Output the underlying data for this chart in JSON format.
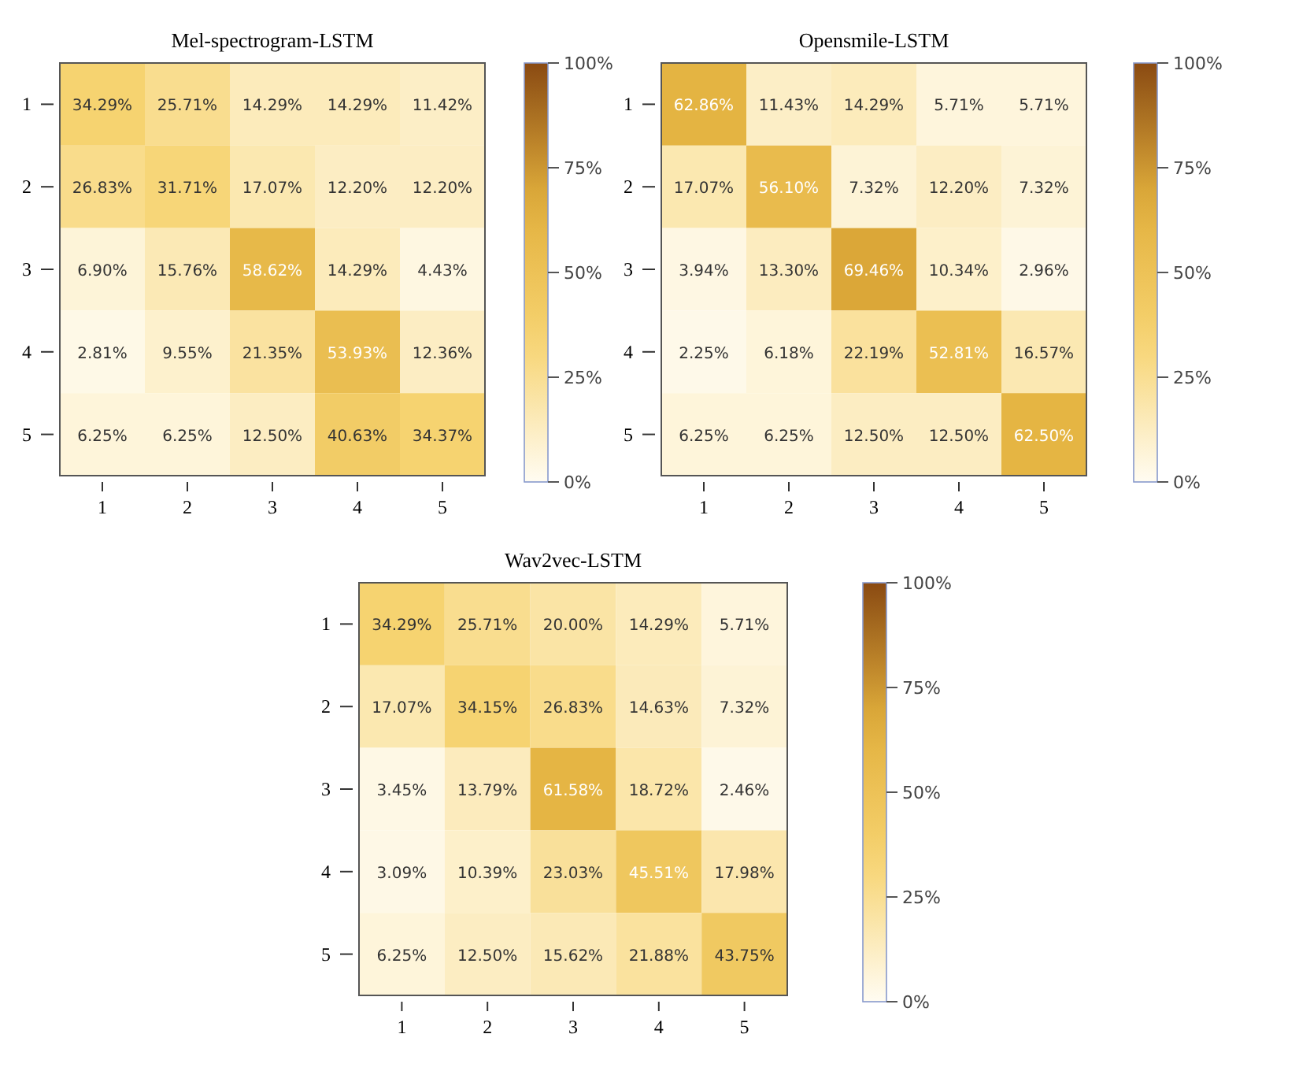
{
  "chart_data": [
    {
      "type": "heatmap",
      "title": "Mel-spectrogram-LSTM",
      "categories": [
        "1",
        "2",
        "3",
        "4",
        "5"
      ],
      "y_categories": [
        "1",
        "2",
        "3",
        "4",
        "5"
      ],
      "cells": [
        [
          34.29,
          25.71,
          14.29,
          14.29,
          11.42
        ],
        [
          26.83,
          31.71,
          17.07,
          12.2,
          12.2
        ],
        [
          6.9,
          15.76,
          58.62,
          14.29,
          4.43
        ],
        [
          2.81,
          9.55,
          21.35,
          53.93,
          12.36
        ],
        [
          6.25,
          6.25,
          12.5,
          40.63,
          34.37
        ]
      ],
      "cell_labels": [
        [
          "34.29%",
          "25.71%",
          "14.29%",
          "14.29%",
          "11.42%"
        ],
        [
          "26.83%",
          "31.71%",
          "17.07%",
          "12.20%",
          "12.20%"
        ],
        [
          "6.90%",
          "15.76%",
          "58.62%",
          "14.29%",
          "4.43%"
        ],
        [
          "2.81%",
          "9.55%",
          "21.35%",
          "53.93%",
          "12.36%"
        ],
        [
          "6.25%",
          "6.25%",
          "12.50%",
          "40.63%",
          "34.37%"
        ]
      ],
      "clim": [
        0,
        100
      ],
      "cticks": [
        {
          "value": 0,
          "label": "0%"
        },
        {
          "value": 25,
          "label": "25%"
        },
        {
          "value": 50,
          "label": "50%"
        },
        {
          "value": 75,
          "label": "75%"
        },
        {
          "value": 100,
          "label": "100%"
        }
      ]
    },
    {
      "type": "heatmap",
      "title": "Opensmile-LSTM",
      "categories": [
        "1",
        "2",
        "3",
        "4",
        "5"
      ],
      "y_categories": [
        "1",
        "2",
        "3",
        "4",
        "5"
      ],
      "cells": [
        [
          62.86,
          11.43,
          14.29,
          5.71,
          5.71
        ],
        [
          17.07,
          56.1,
          7.32,
          12.2,
          7.32
        ],
        [
          3.94,
          13.3,
          69.46,
          10.34,
          2.96
        ],
        [
          2.25,
          6.18,
          22.19,
          52.81,
          16.57
        ],
        [
          6.25,
          6.25,
          12.5,
          12.5,
          62.5
        ]
      ],
      "cell_labels": [
        [
          "62.86%",
          "11.43%",
          "14.29%",
          "5.71%",
          "5.71%"
        ],
        [
          "17.07%",
          "56.10%",
          "7.32%",
          "12.20%",
          "7.32%"
        ],
        [
          "3.94%",
          "13.30%",
          "69.46%",
          "10.34%",
          "2.96%"
        ],
        [
          "2.25%",
          "6.18%",
          "22.19%",
          "52.81%",
          "16.57%"
        ],
        [
          "6.25%",
          "6.25%",
          "12.50%",
          "12.50%",
          "62.50%"
        ]
      ],
      "clim": [
        0,
        100
      ],
      "cticks": [
        {
          "value": 0,
          "label": "0%"
        },
        {
          "value": 25,
          "label": "25%"
        },
        {
          "value": 50,
          "label": "50%"
        },
        {
          "value": 75,
          "label": "75%"
        },
        {
          "value": 100,
          "label": "100%"
        }
      ]
    },
    {
      "type": "heatmap",
      "title": "Wav2vec-LSTM",
      "categories": [
        "1",
        "2",
        "3",
        "4",
        "5"
      ],
      "y_categories": [
        "1",
        "2",
        "3",
        "4",
        "5"
      ],
      "cells": [
        [
          34.29,
          25.71,
          20.0,
          14.29,
          5.71
        ],
        [
          17.07,
          34.15,
          26.83,
          14.63,
          7.32
        ],
        [
          3.45,
          13.79,
          61.58,
          18.72,
          2.46
        ],
        [
          3.09,
          10.39,
          23.03,
          45.51,
          17.98
        ],
        [
          6.25,
          12.5,
          15.62,
          21.88,
          43.75
        ]
      ],
      "cell_labels": [
        [
          "34.29%",
          "25.71%",
          "20.00%",
          "14.29%",
          "5.71%"
        ],
        [
          "17.07%",
          "34.15%",
          "26.83%",
          "14.63%",
          "7.32%"
        ],
        [
          "3.45%",
          "13.79%",
          "61.58%",
          "18.72%",
          "2.46%"
        ],
        [
          "3.09%",
          "10.39%",
          "23.03%",
          "45.51%",
          "17.98%"
        ],
        [
          "6.25%",
          "12.50%",
          "15.62%",
          "21.88%",
          "43.75%"
        ]
      ],
      "clim": [
        0,
        100
      ],
      "cticks": [
        {
          "value": 0,
          "label": "0%"
        },
        {
          "value": 25,
          "label": "25%"
        },
        {
          "value": 50,
          "label": "50%"
        },
        {
          "value": 75,
          "label": "75%"
        },
        {
          "value": 100,
          "label": "100%"
        }
      ]
    }
  ]
}
